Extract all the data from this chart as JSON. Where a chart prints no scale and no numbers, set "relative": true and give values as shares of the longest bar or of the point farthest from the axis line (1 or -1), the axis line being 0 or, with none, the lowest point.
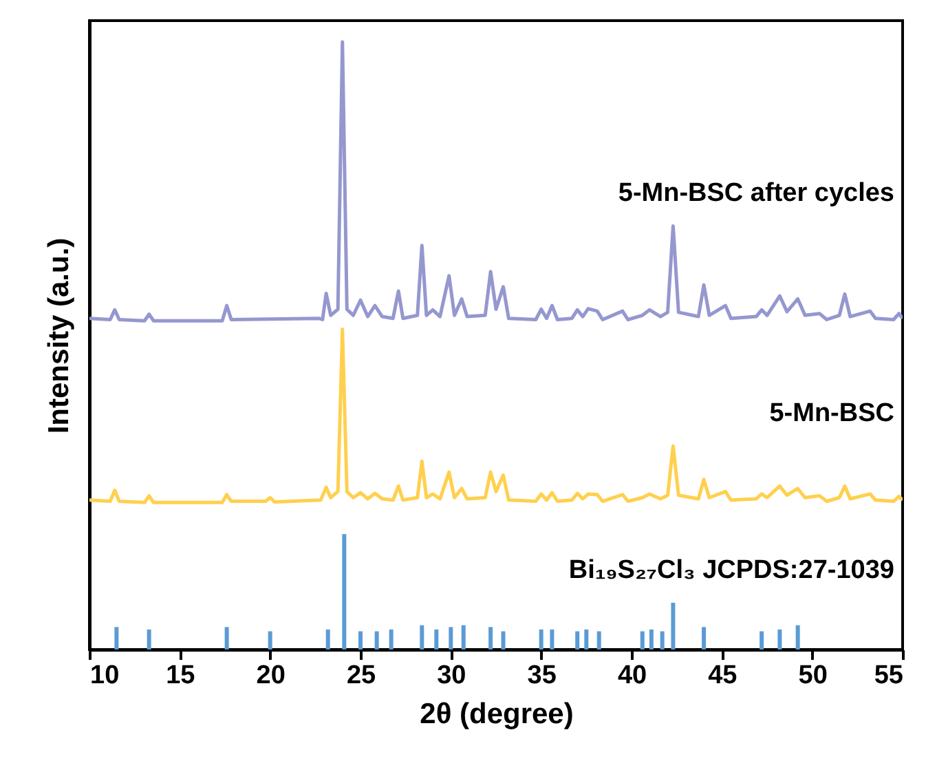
{
  "chart_data": {
    "type": "line",
    "xlabel": "2θ (degree)",
    "ylabel": "Intensity (a.u.)",
    "relative": true,
    "xlim": [
      10,
      55
    ],
    "xticks": [
      10,
      15,
      20,
      25,
      30,
      35,
      40,
      45,
      50,
      55
    ],
    "grid": false,
    "legend": false,
    "series": [
      {
        "name": "5-Mn-BSC after cycles",
        "color": "#9597cf",
        "x": [
          10.0,
          11.15,
          11.4,
          11.65,
          13.05,
          13.3,
          13.55,
          17.35,
          17.6,
          17.85,
          22.7,
          22.9,
          23.1,
          23.35,
          23.75,
          24.0,
          24.25,
          24.6,
          25.0,
          25.4,
          25.8,
          26.2,
          26.8,
          27.1,
          27.35,
          28.15,
          28.4,
          28.65,
          29.0,
          29.4,
          29.9,
          30.2,
          30.6,
          30.9,
          31.9,
          32.2,
          32.5,
          32.9,
          33.2,
          34.7,
          35.0,
          35.3,
          35.6,
          35.9,
          36.7,
          37.0,
          37.3,
          37.6,
          38.1,
          38.4,
          39.5,
          39.8,
          40.6,
          41.0,
          41.6,
          42.0,
          42.3,
          42.6,
          43.7,
          44.0,
          44.3,
          45.2,
          45.5,
          46.9,
          47.2,
          47.5,
          48.2,
          48.6,
          49.2,
          49.6,
          50.4,
          50.8,
          51.5,
          51.8,
          52.1,
          53.2,
          53.5,
          54.5,
          54.8,
          55.0
        ],
        "values": [
          0.545,
          0.543,
          0.559,
          0.543,
          0.541,
          0.552,
          0.541,
          0.541,
          0.566,
          0.543,
          0.545,
          0.543,
          0.586,
          0.55,
          0.56,
          1.0,
          0.56,
          0.55,
          0.575,
          0.548,
          0.566,
          0.548,
          0.545,
          0.59,
          0.545,
          0.55,
          0.665,
          0.55,
          0.559,
          0.548,
          0.615,
          0.55,
          0.577,
          0.548,
          0.55,
          0.622,
          0.56,
          0.597,
          0.545,
          0.543,
          0.56,
          0.545,
          0.566,
          0.543,
          0.545,
          0.559,
          0.548,
          0.561,
          0.557,
          0.543,
          0.557,
          0.543,
          0.55,
          0.559,
          0.548,
          0.555,
          0.697,
          0.555,
          0.548,
          0.6,
          0.55,
          0.566,
          0.545,
          0.548,
          0.559,
          0.55,
          0.582,
          0.556,
          0.577,
          0.55,
          0.553,
          0.543,
          0.55,
          0.585,
          0.548,
          0.557,
          0.545,
          0.543,
          0.553,
          0.545
        ]
      },
      {
        "name": "5-Mn-BSC",
        "color": "#ffd04f",
        "x": [
          10.0,
          11.15,
          11.4,
          11.65,
          13.05,
          13.3,
          13.55,
          17.35,
          17.6,
          17.85,
          19.75,
          20.0,
          20.25,
          22.8,
          23.1,
          23.35,
          23.75,
          24.0,
          24.25,
          24.6,
          25.0,
          25.4,
          25.8,
          26.2,
          26.8,
          27.1,
          27.35,
          28.15,
          28.4,
          28.65,
          29.0,
          29.4,
          29.9,
          30.2,
          30.6,
          30.9,
          31.9,
          32.2,
          32.5,
          32.9,
          33.2,
          34.7,
          35.0,
          35.3,
          35.6,
          35.9,
          36.7,
          37.0,
          37.3,
          37.6,
          38.1,
          38.4,
          39.5,
          39.8,
          40.6,
          41.0,
          41.6,
          42.0,
          42.3,
          42.6,
          43.7,
          44.0,
          44.3,
          45.2,
          45.5,
          46.9,
          47.2,
          47.5,
          48.2,
          48.6,
          49.2,
          49.6,
          50.4,
          50.8,
          51.5,
          51.8,
          52.1,
          53.2,
          53.5,
          54.5,
          54.8,
          55.0
        ],
        "values": [
          0.246,
          0.244,
          0.262,
          0.244,
          0.242,
          0.253,
          0.242,
          0.242,
          0.255,
          0.244,
          0.244,
          0.25,
          0.243,
          0.246,
          0.267,
          0.25,
          0.26,
          0.527,
          0.26,
          0.25,
          0.258,
          0.248,
          0.257,
          0.248,
          0.246,
          0.269,
          0.246,
          0.25,
          0.31,
          0.25,
          0.256,
          0.248,
          0.292,
          0.25,
          0.265,
          0.248,
          0.25,
          0.292,
          0.26,
          0.287,
          0.246,
          0.244,
          0.256,
          0.246,
          0.258,
          0.244,
          0.246,
          0.257,
          0.248,
          0.256,
          0.255,
          0.244,
          0.255,
          0.244,
          0.25,
          0.256,
          0.248,
          0.254,
          0.335,
          0.254,
          0.248,
          0.28,
          0.25,
          0.26,
          0.246,
          0.248,
          0.256,
          0.25,
          0.269,
          0.254,
          0.265,
          0.25,
          0.253,
          0.244,
          0.25,
          0.269,
          0.248,
          0.256,
          0.246,
          0.244,
          0.252,
          0.246
        ]
      },
      {
        "name": "Bi₁₉S₂₇Cl₃ JCPDS:27-1039",
        "type": "bar",
        "color": "#5b9bd5",
        "x": [
          11.5,
          13.3,
          17.6,
          20.0,
          23.2,
          24.1,
          25.0,
          25.9,
          26.7,
          28.4,
          29.2,
          30.0,
          30.7,
          32.2,
          32.9,
          35.0,
          35.6,
          37.0,
          37.5,
          38.2,
          40.6,
          41.1,
          41.7,
          42.3,
          44.0,
          47.2,
          48.2,
          49.2
        ],
        "values": [
          0.037,
          0.033,
          0.037,
          0.03,
          0.033,
          0.19,
          0.03,
          0.03,
          0.033,
          0.04,
          0.033,
          0.037,
          0.04,
          0.037,
          0.03,
          0.033,
          0.033,
          0.03,
          0.033,
          0.03,
          0.03,
          0.033,
          0.03,
          0.077,
          0.037,
          0.03,
          0.033,
          0.04
        ]
      }
    ]
  }
}
